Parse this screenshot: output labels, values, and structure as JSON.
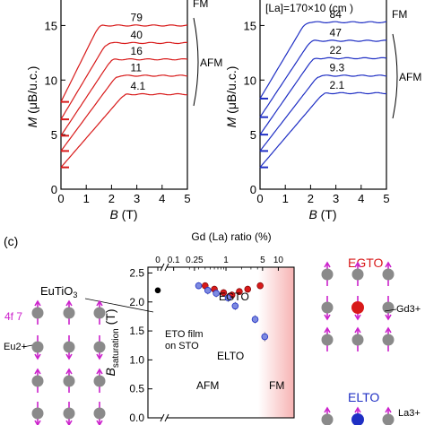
{
  "colors": {
    "egto": "#d81a1a",
    "elto": "#1f2fc4",
    "elto_fill": "#7d8ae0",
    "spin": "#cc22cc",
    "atom": "#8a8a8a",
    "eto": "#000000"
  },
  "panel_a": {
    "ylabel": "M (μB/u.c.)",
    "ylabel_sym": "M",
    "ylabel_unit": "(μB/u.c.)",
    "xlabel": "B (T)",
    "xlabel_sym": "B",
    "xlabel_unit": "(T)",
    "fm_label": "FM",
    "afm_label": "AFM",
    "curve_labels": [
      "79",
      "40",
      "16",
      "11",
      "4.1"
    ]
  },
  "panel_b": {
    "ylabel": "M (μB/u.c.)",
    "ylabel_sym": "M",
    "ylabel_unit": "(μB/u.c.)",
    "xlabel": "B (T)",
    "xlabel_sym": "B",
    "xlabel_unit": "(T)",
    "header": "[La]=170×10 (cm )",
    "fm_label": "FM",
    "afm_label": "AFM",
    "curve_labels": [
      "84",
      "47",
      "22",
      "9.3",
      "2.1"
    ]
  },
  "panel_c": {
    "tag": "(c)",
    "top_axis_title": "Gd (La) ratio (%)",
    "ylabel": "B_saturation (T)",
    "ylabel_sym": "B",
    "ylabel_sub": "saturation",
    "ylabel_unit": "(T)",
    "eutio3_label": "EuTiO3",
    "eutio3_base": "EuTiO",
    "eutio3_sub": "3",
    "eto_film_line1": "ETO film",
    "eto_film_line2": "on STO",
    "egto_label": "EGTO",
    "elto_label": "ELTO",
    "afm_label": "AFM",
    "fm_label": "FM",
    "f7_label": "4f 7",
    "eu_label": "Eu2+",
    "egto_side": "EGTO",
    "gd_label": "Gd3+",
    "elto_side": "ELTO",
    "la_label": "La3+"
  },
  "chart_data": [
    {
      "type": "line",
      "xlabel": "B (T)",
      "ylabel": "M (μB/u.c.)",
      "xlim": [
        0,
        5
      ],
      "ylim": [
        0,
        17.5
      ],
      "xticks": [
        0,
        1,
        2,
        3,
        4,
        5
      ],
      "yticks": [
        0,
        5,
        10,
        15
      ],
      "series": [
        {
          "name": "79",
          "offset": 8.0,
          "knee": 1.5,
          "plateau": 7.0
        },
        {
          "name": "40",
          "offset": 6.4,
          "knee": 1.8,
          "plateau": 7.0
        },
        {
          "name": "16",
          "offset": 4.9,
          "knee": 2.0,
          "plateau": 7.0
        },
        {
          "name": "11",
          "offset": 3.5,
          "knee": 2.2,
          "plateau": 6.9
        },
        {
          "name": "4.1",
          "offset": 2.0,
          "knee": 2.5,
          "plateau": 6.7
        }
      ]
    },
    {
      "type": "line",
      "xlabel": "B (T)",
      "ylabel": "M (μB/u.c.)",
      "xlim": [
        0,
        5
      ],
      "ylim": [
        0,
        17.5
      ],
      "xticks": [
        0,
        1,
        2,
        3,
        4,
        5
      ],
      "yticks": [
        0,
        5,
        10,
        15
      ],
      "series": [
        {
          "name": "84",
          "offset": 8.3,
          "knee": 1.8,
          "plateau": 7.0
        },
        {
          "name": "47",
          "offset": 6.6,
          "knee": 2.0,
          "plateau": 7.0
        },
        {
          "name": "22",
          "offset": 5.0,
          "knee": 2.1,
          "plateau": 7.0
        },
        {
          "name": "9.3",
          "offset": 3.5,
          "knee": 2.3,
          "plateau": 6.9
        },
        {
          "name": "2.1",
          "offset": 2.0,
          "knee": 2.5,
          "plateau": 6.8
        }
      ]
    },
    {
      "type": "scatter",
      "ylabel": "B_saturation (T)",
      "top_axis_label": "Gd (La) ratio (%)",
      "xscale": "log",
      "xlim_log": [
        0.08,
        20
      ],
      "ylim": [
        0,
        2.6
      ],
      "yticks": [
        0.0,
        0.5,
        1.0,
        1.5,
        2.0,
        2.5
      ],
      "top_ticks": [
        "0",
        "0.1",
        "0.25",
        "1",
        "5",
        "10"
      ],
      "eto_film": {
        "x": 0,
        "y": 2.2
      },
      "series": [
        {
          "name": "EGTO",
          "x": [
            0.4,
            0.6,
            0.9,
            1.3,
            1.8,
            2.6,
            4.5
          ],
          "y": [
            2.28,
            2.22,
            2.16,
            2.12,
            2.18,
            2.22,
            2.28
          ],
          "yerr": [
            0.06,
            0.06,
            0.06,
            0.06,
            0.06,
            0.06,
            0.06
          ]
        },
        {
          "name": "ELTO",
          "x": [
            0.3,
            0.45,
            0.65,
            1.1,
            1.5,
            3.6,
            5.5
          ],
          "y": [
            2.28,
            2.2,
            2.15,
            2.07,
            1.93,
            1.7,
            1.4
          ],
          "yerr": [
            0.06,
            0.07,
            0.07,
            0.07,
            0.07,
            0.07,
            0.08
          ]
        }
      ]
    }
  ]
}
